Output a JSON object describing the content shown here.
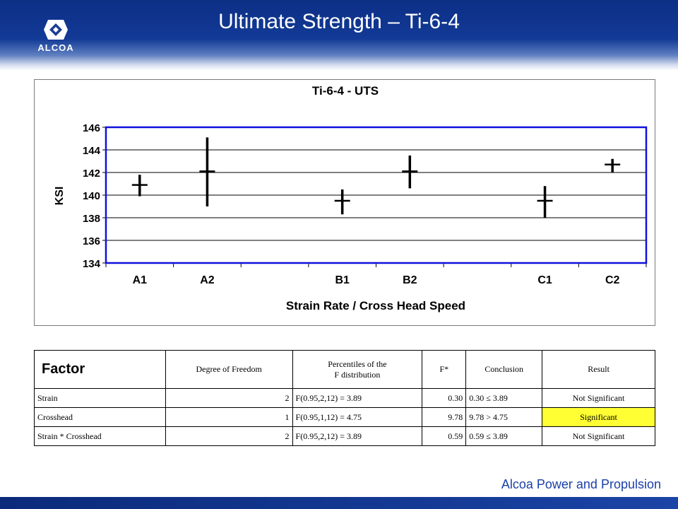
{
  "header": {
    "title": "Ultimate Strength – Ti-6-4",
    "logo_text": "ALCOA",
    "logo_icon": "alcoa-logo"
  },
  "chart_data": {
    "type": "error-bar",
    "title": "Ti-6-4 - UTS",
    "xlabel": "Strain Rate / Cross Head Speed",
    "ylabel": "KSI",
    "ylim": [
      134,
      146
    ],
    "yticks": [
      134,
      136,
      138,
      140,
      142,
      144,
      146
    ],
    "grid": true,
    "categories": [
      "A1",
      "A2",
      "",
      "B1",
      "B2",
      "",
      "C1",
      "C2"
    ],
    "points": [
      {
        "category": "A1",
        "mean": 140.9,
        "low": 139.9,
        "high": 141.8
      },
      {
        "category": "A2",
        "mean": 142.1,
        "low": 139.0,
        "high": 145.1
      },
      {
        "category": "B1",
        "mean": 139.5,
        "low": 138.3,
        "high": 140.5
      },
      {
        "category": "B2",
        "mean": 142.1,
        "low": 140.6,
        "high": 143.5
      },
      {
        "category": "C1",
        "mean": 139.5,
        "low": 138.0,
        "high": 140.8
      },
      {
        "category": "C2",
        "mean": 142.7,
        "low": 142.0,
        "high": 143.2
      }
    ],
    "colors": {
      "frame": "#1010dd",
      "marks": "#000000",
      "grid": "#000000"
    }
  },
  "table": {
    "headers": {
      "factor": "Factor",
      "dof": "Degree of Freedom",
      "pct_line1": "Percentiles of the",
      "pct_line2": "F distribution",
      "fstar": "F*",
      "conclusion": "Conclusion",
      "result": "Result"
    },
    "rows": [
      {
        "factor": "Strain",
        "dof": "2",
        "pct": "F(0.95,2,12) = 3.89",
        "fstar": "0.30",
        "conclusion": "0.30 ≤ 3.89",
        "result": "Not Significant"
      },
      {
        "factor": "Crosshead",
        "dof": "1",
        "pct": "F(0.95,1,12) = 4.75",
        "fstar": "9.78",
        "conclusion": "9.78 > 4.75",
        "result": "Significant"
      },
      {
        "factor": "Strain * Crosshead",
        "dof": "2",
        "pct": "F(0.95,2,12) = 3.89",
        "fstar": "0.59",
        "conclusion": "0.59 ≤ 3.89",
        "result": "Not Significant"
      }
    ],
    "highlight_color": "#ffff33"
  },
  "footer": {
    "text": "Alcoa Power and Propulsion"
  }
}
